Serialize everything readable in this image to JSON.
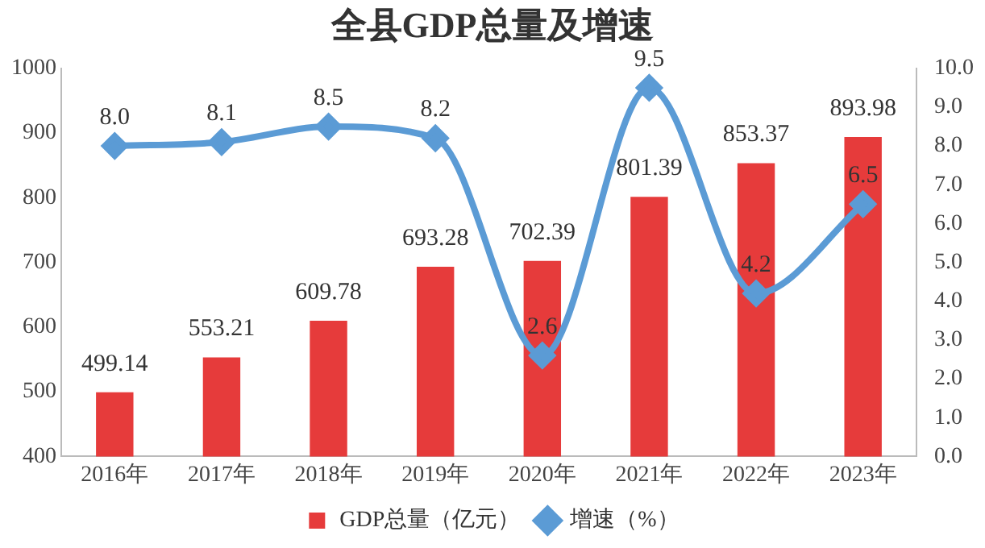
{
  "chart_data": {
    "type": "bar",
    "title": "全县GDP总量及增速",
    "categories": [
      "2016年",
      "2017年",
      "2018年",
      "2019年",
      "2020年",
      "2021年",
      "2022年",
      "2023年"
    ],
    "series": [
      {
        "name": "GDP总量（亿元）",
        "color": "#e63b3b",
        "values": [
          499.14,
          553.21,
          609.78,
          693.28,
          702.39,
          801.39,
          853.37,
          893.98
        ],
        "value_labels": [
          "499.14",
          "553.21",
          "609.78",
          "693.28",
          "702.39",
          "801.39",
          "853.37",
          "893.98"
        ]
      },
      {
        "name": "增速（%）",
        "type": "line",
        "axis": "y2",
        "color": "#5b9bd5",
        "marker": "diamond",
        "values": [
          8.0,
          8.1,
          8.5,
          8.2,
          2.6,
          9.5,
          4.2,
          6.5
        ],
        "value_labels": [
          "8.0",
          "8.1",
          "8.5",
          "8.2",
          "2.6",
          "9.5",
          "4.2",
          "6.5"
        ]
      }
    ],
    "ylim": [
      400,
      1000
    ],
    "yticks": [
      400,
      500,
      600,
      700,
      800,
      900,
      1000
    ],
    "y2lim": [
      0,
      10
    ],
    "y2ticks": [
      {
        "value": 0,
        "label": "0.0"
      },
      {
        "value": 1,
        "label": "1.0"
      },
      {
        "value": 2,
        "label": "2.0"
      },
      {
        "value": 3,
        "label": "3.0"
      },
      {
        "value": 4,
        "label": "4.0"
      },
      {
        "value": 5,
        "label": "5.0"
      },
      {
        "value": 6,
        "label": "6.0"
      },
      {
        "value": 7,
        "label": "7.0"
      },
      {
        "value": 8,
        "label": "8.0"
      },
      {
        "value": 9,
        "label": "9.0"
      },
      {
        "value": 10,
        "label": "10.0"
      }
    ],
    "legend": "bottom"
  }
}
